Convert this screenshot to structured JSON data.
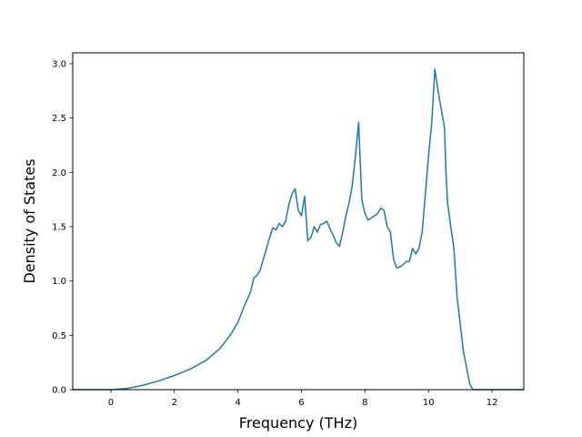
{
  "chart_data": {
    "type": "line",
    "title": "",
    "xlabel": "Frequency (THz)",
    "ylabel": "Density of States",
    "xlim": [
      -1.2,
      13.0
    ],
    "ylim": [
      0,
      3.1
    ],
    "x_ticks": [
      0,
      2,
      4,
      6,
      8,
      10,
      12
    ],
    "y_ticks": [
      0.0,
      0.5,
      1.0,
      1.5,
      2.0,
      2.5,
      3.0
    ],
    "x_tick_labels": [
      "0",
      "2",
      "4",
      "6",
      "8",
      "10",
      "12"
    ],
    "y_tick_labels": [
      "0.0",
      "0.5",
      "1.0",
      "1.5",
      "2.0",
      "2.5",
      "3.0"
    ],
    "grid": false,
    "legend": "none",
    "series": [
      {
        "color": "#1f77b4",
        "x": [
          -1.2,
          -0.5,
          0.0,
          0.5,
          1.0,
          1.5,
          2.0,
          2.5,
          3.0,
          3.2,
          3.4,
          3.6,
          3.8,
          4.0,
          4.2,
          4.4,
          4.5,
          4.6,
          4.7,
          4.8,
          4.9,
          5.0,
          5.1,
          5.2,
          5.3,
          5.4,
          5.5,
          5.6,
          5.7,
          5.8,
          5.9,
          6.0,
          6.1,
          6.2,
          6.3,
          6.4,
          6.5,
          6.6,
          6.7,
          6.8,
          6.9,
          7.0,
          7.1,
          7.2,
          7.3,
          7.4,
          7.5,
          7.6,
          7.7,
          7.8,
          7.9,
          8.0,
          8.1,
          8.2,
          8.3,
          8.4,
          8.5,
          8.6,
          8.7,
          8.8,
          8.9,
          9.0,
          9.1,
          9.2,
          9.3,
          9.4,
          9.5,
          9.6,
          9.7,
          9.8,
          9.9,
          10.0,
          10.1,
          10.2,
          10.3,
          10.4,
          10.5,
          10.55,
          10.6,
          10.7,
          10.8,
          10.9,
          11.0,
          11.1,
          11.2,
          11.3,
          11.4,
          11.5,
          11.6,
          11.7,
          11.8,
          12.0,
          12.5,
          13.0
        ],
        "y": [
          0.0,
          0.0,
          0.0,
          0.01,
          0.04,
          0.08,
          0.13,
          0.19,
          0.27,
          0.32,
          0.37,
          0.44,
          0.52,
          0.62,
          0.77,
          0.9,
          1.03,
          1.05,
          1.1,
          1.2,
          1.3,
          1.4,
          1.49,
          1.47,
          1.53,
          1.5,
          1.55,
          1.7,
          1.8,
          1.85,
          1.65,
          1.6,
          1.78,
          1.37,
          1.4,
          1.5,
          1.45,
          1.52,
          1.53,
          1.55,
          1.48,
          1.42,
          1.35,
          1.32,
          1.45,
          1.6,
          1.72,
          1.88,
          2.15,
          2.46,
          1.75,
          1.62,
          1.56,
          1.58,
          1.6,
          1.62,
          1.67,
          1.65,
          1.5,
          1.45,
          1.2,
          1.12,
          1.13,
          1.15,
          1.18,
          1.18,
          1.3,
          1.25,
          1.3,
          1.45,
          1.8,
          2.15,
          2.45,
          2.95,
          2.75,
          2.58,
          2.42,
          2.0,
          1.72,
          1.5,
          1.3,
          0.85,
          0.6,
          0.35,
          0.2,
          0.05,
          0.0,
          0.0,
          0.0,
          0.0,
          0.0,
          0.0,
          0.0,
          0.0
        ]
      }
    ]
  }
}
